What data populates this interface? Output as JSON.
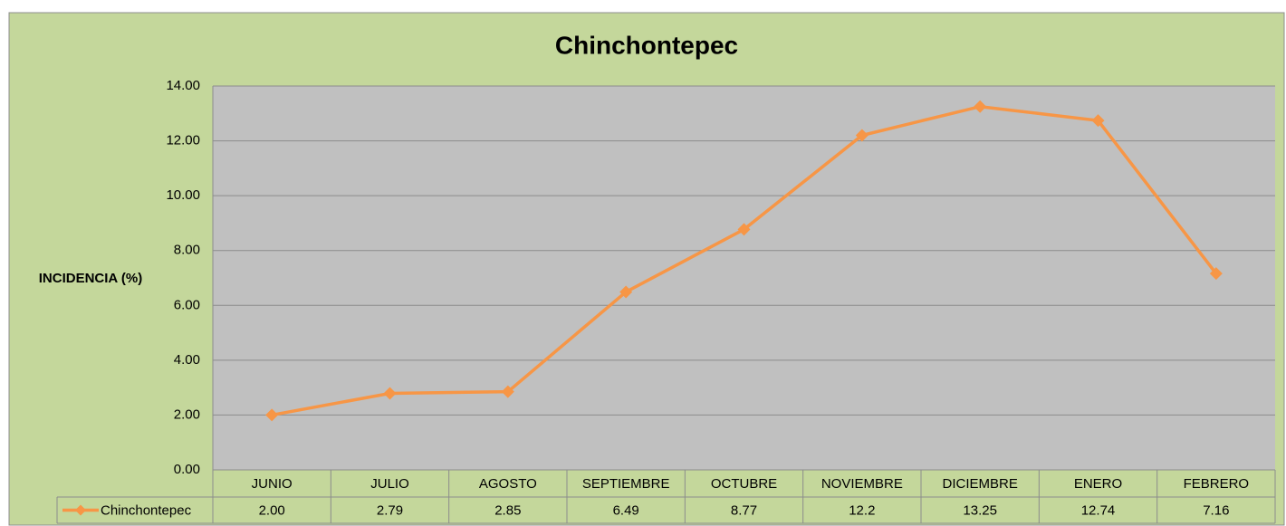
{
  "chart_data": {
    "type": "line",
    "title": "Chinchontepec",
    "y_label": "INCIDENCIA (%)",
    "categories": [
      "JUNIO",
      "JULIO",
      "AGOSTO",
      "SEPTIEMBRE",
      "OCTUBRE",
      "NOVIEMBRE",
      "DICIEMBRE",
      "ENERO",
      "FEBRERO"
    ],
    "series": [
      {
        "name": "Chinchontepec",
        "color": "#f79646",
        "values": [
          2.0,
          2.79,
          2.85,
          6.49,
          8.77,
          12.2,
          13.25,
          12.74,
          7.16
        ],
        "value_labels": [
          "2.00",
          "2.79",
          "2.85",
          "6.49",
          "8.77",
          "12.2",
          "13.25",
          "12.74",
          "7.16"
        ]
      }
    ],
    "ylim": [
      0,
      14
    ],
    "yticks": [
      {
        "value": 0,
        "label": "0.00"
      },
      {
        "value": 2,
        "label": "2.00"
      },
      {
        "value": 4,
        "label": "4.00"
      },
      {
        "value": 6,
        "label": "6.00"
      },
      {
        "value": 8,
        "label": "8.00"
      },
      {
        "value": 10,
        "label": "10.00"
      },
      {
        "value": 12,
        "label": "12.00"
      },
      {
        "value": 14,
        "label": "14.00"
      }
    ],
    "grid": true,
    "data_table": true
  }
}
